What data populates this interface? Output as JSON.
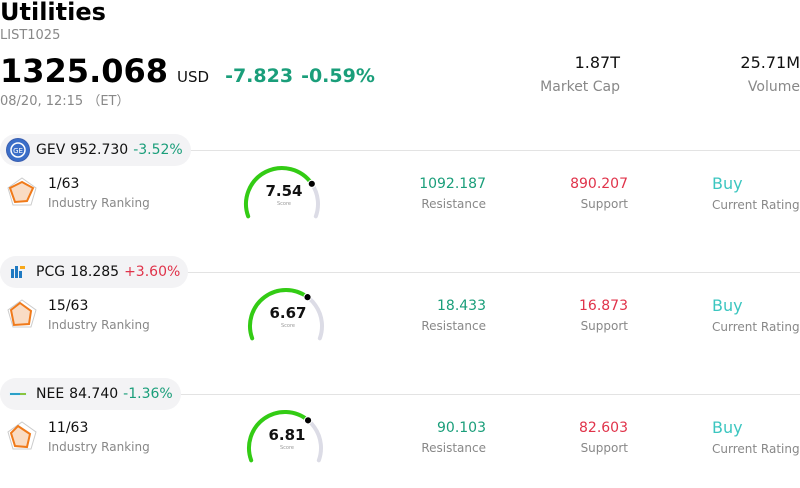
{
  "header": {
    "title": "Utilities",
    "code": "LIST1025",
    "price": "1325.068",
    "currency": "USD",
    "change": "-7.823",
    "change_pct": "-0.59%",
    "time": "08/20, 12:15 （ET）"
  },
  "stats": {
    "market_cap_value": "1.87T",
    "market_cap_label": "Market Cap",
    "volume_value": "25.71M",
    "volume_label": "Volume"
  },
  "colors": {
    "down": "#1a9e7a",
    "up": "#e0334a",
    "gauge_green": "#33cc14",
    "gauge_track": "#dcdce6",
    "rating": "#3cc6c0"
  },
  "stocks": [
    {
      "ticker": "GEV",
      "price": "952.730",
      "change_pct": "-3.52%",
      "direction": "down",
      "logo": "ge-logo",
      "rank": "1/63",
      "rank_label": "Industry Ranking",
      "score": "7.54",
      "score_value": 7.54,
      "score_label": "Score",
      "resistance": "1092.187",
      "resistance_label": "Resistance",
      "support": "890.207",
      "support_label": "Support",
      "rating": "Buy",
      "rating_label": "Current Rating"
    },
    {
      "ticker": "PCG",
      "price": "18.285",
      "change_pct": "+3.60%",
      "direction": "up",
      "logo": "pge-logo",
      "rank": "15/63",
      "rank_label": "Industry Ranking",
      "score": "6.67",
      "score_value": 6.67,
      "score_label": "Score",
      "resistance": "18.433",
      "resistance_label": "Resistance",
      "support": "16.873",
      "support_label": "Support",
      "rating": "Buy",
      "rating_label": "Current Rating"
    },
    {
      "ticker": "NEE",
      "price": "84.740",
      "change_pct": "-1.36%",
      "direction": "down",
      "logo": "nextera-logo",
      "rank": "11/63",
      "rank_label": "Industry Ranking",
      "score": "6.81",
      "score_value": 6.81,
      "score_label": "Score",
      "resistance": "90.103",
      "resistance_label": "Resistance",
      "support": "82.603",
      "support_label": "Support",
      "rating": "Buy",
      "rating_label": "Current Rating"
    }
  ]
}
